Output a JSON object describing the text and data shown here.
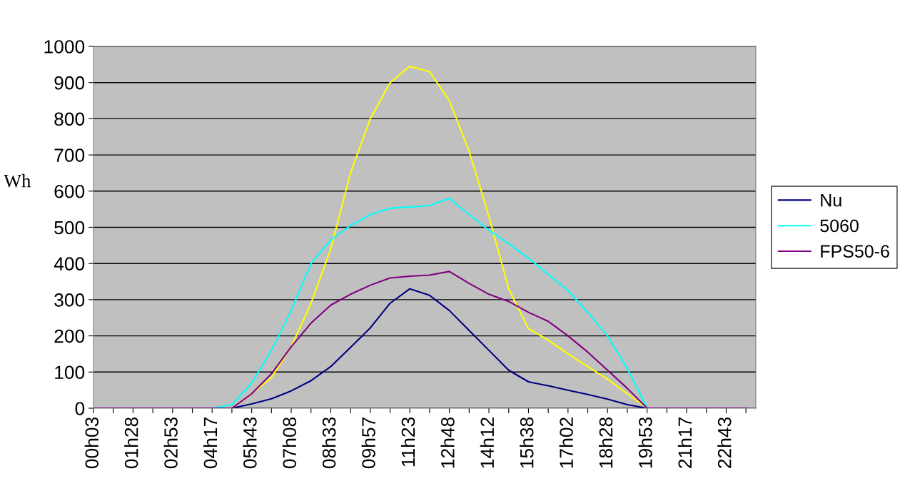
{
  "chart_data": {
    "type": "line",
    "ylabel": "Wh",
    "categories": [
      "00h03",
      null,
      "01h28",
      null,
      "02h53",
      null,
      "04h17",
      null,
      "05h43",
      null,
      "07h08",
      null,
      "08h33",
      null,
      "09h57",
      null,
      "11h23",
      null,
      "12h48",
      null,
      "14h12",
      null,
      "15h38",
      null,
      "17h02",
      null,
      "18h28",
      null,
      "19h53",
      null,
      "21h17",
      null,
      "22h43",
      null
    ],
    "series": [
      {
        "name": "Nu",
        "color": "#000080",
        "values": [
          null,
          null,
          null,
          null,
          null,
          null,
          0,
          0,
          12,
          26,
          48,
          76,
          115,
          168,
          222,
          290,
          330,
          312,
          270,
          215,
          160,
          105,
          73,
          62,
          50,
          38,
          25,
          10,
          0,
          0,
          null,
          null,
          null,
          null
        ]
      },
      {
        "color": "#ffff00",
        "values": [
          null,
          null,
          null,
          null,
          null,
          null,
          null,
          0,
          40,
          85,
          170,
          290,
          440,
          650,
          800,
          900,
          945,
          930,
          850,
          710,
          530,
          330,
          220,
          188,
          150,
          115,
          80,
          40,
          0,
          0,
          null,
          null,
          null,
          null
        ]
      },
      {
        "name": "5060",
        "color": "#00ffff",
        "values": [
          null,
          null,
          null,
          null,
          0,
          0,
          0,
          10,
          70,
          160,
          270,
          400,
          465,
          505,
          535,
          553,
          556,
          560,
          580,
          535,
          492,
          455,
          415,
          370,
          325,
          265,
          200,
          110,
          0,
          0,
          null,
          null,
          null,
          null
        ]
      },
      {
        "name": "FPS50-6",
        "color": "#800080",
        "values": [
          0,
          0,
          0,
          0,
          0,
          0,
          0,
          0,
          40,
          95,
          170,
          235,
          285,
          315,
          340,
          360,
          365,
          368,
          378,
          345,
          315,
          295,
          265,
          240,
          200,
          155,
          105,
          55,
          0,
          0,
          0,
          0,
          0,
          0
        ]
      }
    ],
    "ylim": [
      0,
      1000
    ],
    "yticks": [
      0,
      100,
      200,
      300,
      400,
      500,
      600,
      700,
      800,
      900,
      1000
    ],
    "grid": "y",
    "legend": "right",
    "marker": "none",
    "line_style": "solid"
  }
}
